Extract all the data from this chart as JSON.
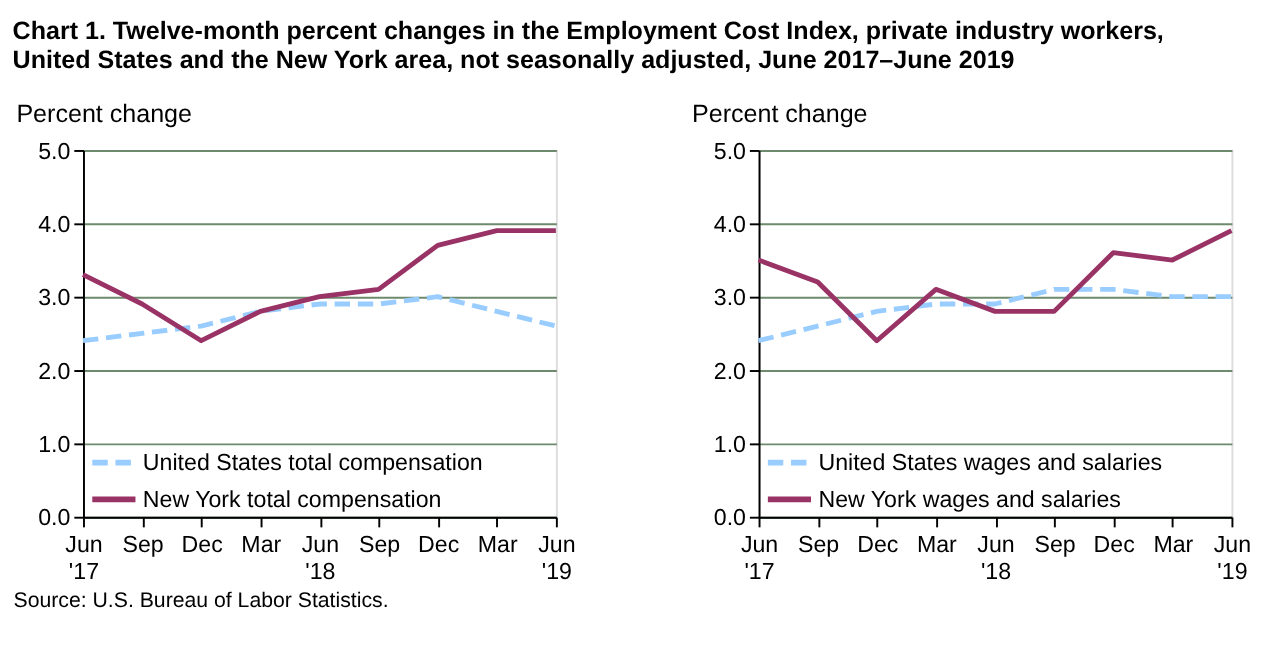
{
  "chart_data": [
    {
      "type": "line",
      "title": "Chart 1. Twelve-month percent changes in the Employment Cost Index, private industry workers, United States and the New York area, not seasonally adjusted, June 2017–June 2019",
      "ylabel": "Percent change",
      "categories": [
        "Jun '17",
        "Sep",
        "Dec",
        "Mar",
        "Jun '18",
        "Sep",
        "Dec",
        "Mar",
        "Jun '19"
      ],
      "ylim": [
        0,
        5
      ],
      "yticks": [
        {
          "value": 0,
          "label": "0.0"
        },
        {
          "value": 1,
          "label": "1.0"
        },
        {
          "value": 2,
          "label": "2.0"
        },
        {
          "value": 3,
          "label": "3.0"
        },
        {
          "value": 4,
          "label": "4.0"
        },
        {
          "value": 5,
          "label": "5.0"
        }
      ],
      "grid": "y",
      "legend": "bottom left",
      "marker": "none",
      "annotations": [
        "Source: U.S. Bureau of Labor Statistics."
      ],
      "series": [
        {
          "name": "United States total compensation",
          "color": "#99ccff",
          "line_style": "dashed",
          "values": [
            2.4,
            2.5,
            2.6,
            2.8,
            2.9,
            2.9,
            3.0,
            2.8,
            2.6
          ]
        },
        {
          "name": "New York total compensation",
          "color": "#993366",
          "line_style": "solid",
          "values": [
            3.3,
            2.9,
            2.4,
            2.8,
            3.0,
            3.1,
            3.7,
            3.9,
            3.9
          ]
        }
      ]
    },
    {
      "type": "line",
      "ylabel": "Percent change",
      "categories": [
        "Jun '17",
        "Sep",
        "Dec",
        "Mar",
        "Jun '18",
        "Sep",
        "Dec",
        "Mar",
        "Jun '19"
      ],
      "ylim": [
        0,
        5
      ],
      "yticks": [
        {
          "value": 0,
          "label": "0.0"
        },
        {
          "value": 1,
          "label": "1.0"
        },
        {
          "value": 2,
          "label": "2.0"
        },
        {
          "value": 3,
          "label": "3.0"
        },
        {
          "value": 4,
          "label": "4.0"
        },
        {
          "value": 5,
          "label": "5.0"
        }
      ],
      "grid": "y",
      "legend": "bottom left",
      "marker": "none",
      "series": [
        {
          "name": "United States wages and salaries",
          "color": "#99ccff",
          "line_style": "dashed",
          "values": [
            2.4,
            2.6,
            2.8,
            2.9,
            2.9,
            3.1,
            3.1,
            3.0,
            3.0
          ]
        },
        {
          "name": "New York wages and salaries",
          "color": "#993366",
          "line_style": "solid",
          "values": [
            3.5,
            3.2,
            2.4,
            3.1,
            2.8,
            2.8,
            3.6,
            3.5,
            3.9
          ]
        }
      ]
    }
  ]
}
